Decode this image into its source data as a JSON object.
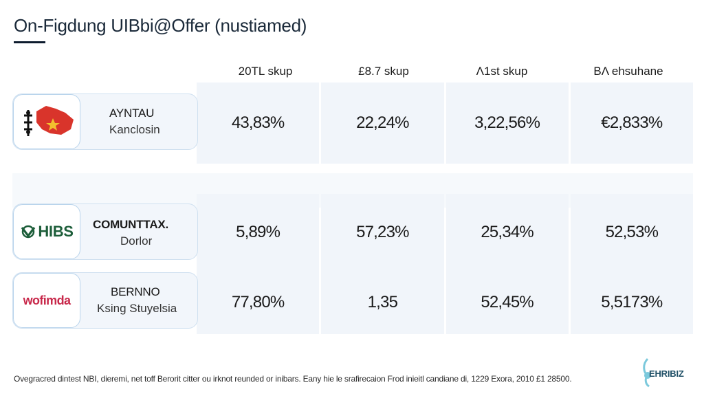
{
  "title": "On-Figdung UIBbi@Offer (nustiamed)",
  "columns": [
    "20TL skup",
    "£8.7 skup",
    "Λ1st skup",
    "BΛ ehsuhane"
  ],
  "rows": [
    {
      "name": "AYNTAU",
      "sub": "Kanclosin",
      "logo_icon": "map-flag-icon",
      "values": [
        "43,83%",
        "22,24%",
        "3,22,56%",
        "€2,833%"
      ]
    },
    {
      "name": "COMUNTTAX.",
      "sub": "Dorlor",
      "logo_text": "HIBS",
      "logo_icon": "hibs-logo-icon",
      "values": [
        "5,89%",
        "57,23%",
        "25,34%",
        "52,53%"
      ]
    },
    {
      "name": "BERNNO",
      "sub": "Ksing Stuyelsia",
      "logo_text": "wofimda",
      "logo_icon": "wofimda-logo",
      "values": [
        "77,80%",
        "1,35",
        "52,45%",
        "5,5173%"
      ]
    }
  ],
  "footnote": "Ovegracred dintest NBI, dieremi, net toff Berorit citter ou irknot reunded or inibars.  Eany hie le srafirecaion Frod inieitl candiane di,  1229 Exora, 2010 £1 28500.",
  "corner_logo_text": "EHRIBIZ",
  "colors": {
    "title": "#1b2a3a",
    "cell_bg": "#f1f5fa",
    "card_border": "#b9d4ec",
    "hibs_green": "#1d5e3a",
    "wofimda_red": "#c8284a"
  }
}
